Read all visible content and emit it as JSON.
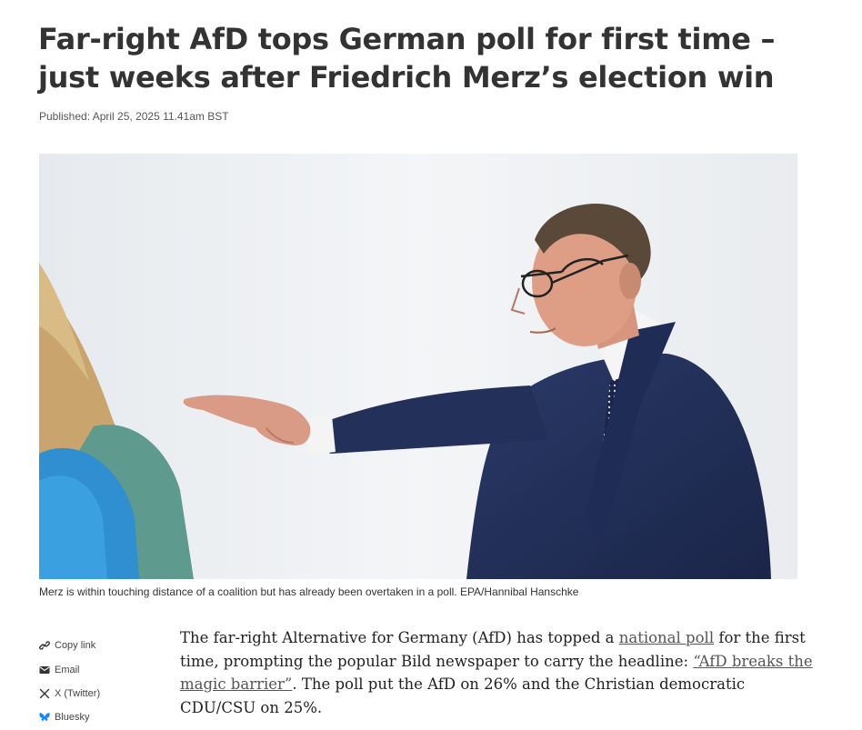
{
  "article": {
    "headline": "Far-right AfD tops German poll for first time – just weeks after Friedrich Merz’s election win",
    "published": "Published: April 25, 2025 11.41am BST",
    "image_alt": "Friedrich Merz reaching out his hand",
    "caption": "Merz is within touching distance of a coalition but has already been overtaken in a poll. EPA/Hannibal Hanschke"
  },
  "share": {
    "items": [
      {
        "label": "Copy link",
        "icon": "link-icon"
      },
      {
        "label": "Email",
        "icon": "email-icon"
      },
      {
        "label": "X (Twitter)",
        "icon": "x-twitter-icon"
      },
      {
        "label": "Bluesky",
        "icon": "bluesky-icon"
      }
    ],
    "bluesky_color": "#1185fe"
  },
  "body": {
    "p1_a": "The far-right Alternative for Germany (AfD) has topped a ",
    "p1_link1": "national poll",
    "p1_b": " for the first time, prompting the popular Bild newspaper to carry the headline: ",
    "p1_link2": "“AfD breaks the magic barrier”",
    "p1_c": ". The poll put the AfD on 26% and the Christian democratic CDU/CSU on 25%."
  }
}
